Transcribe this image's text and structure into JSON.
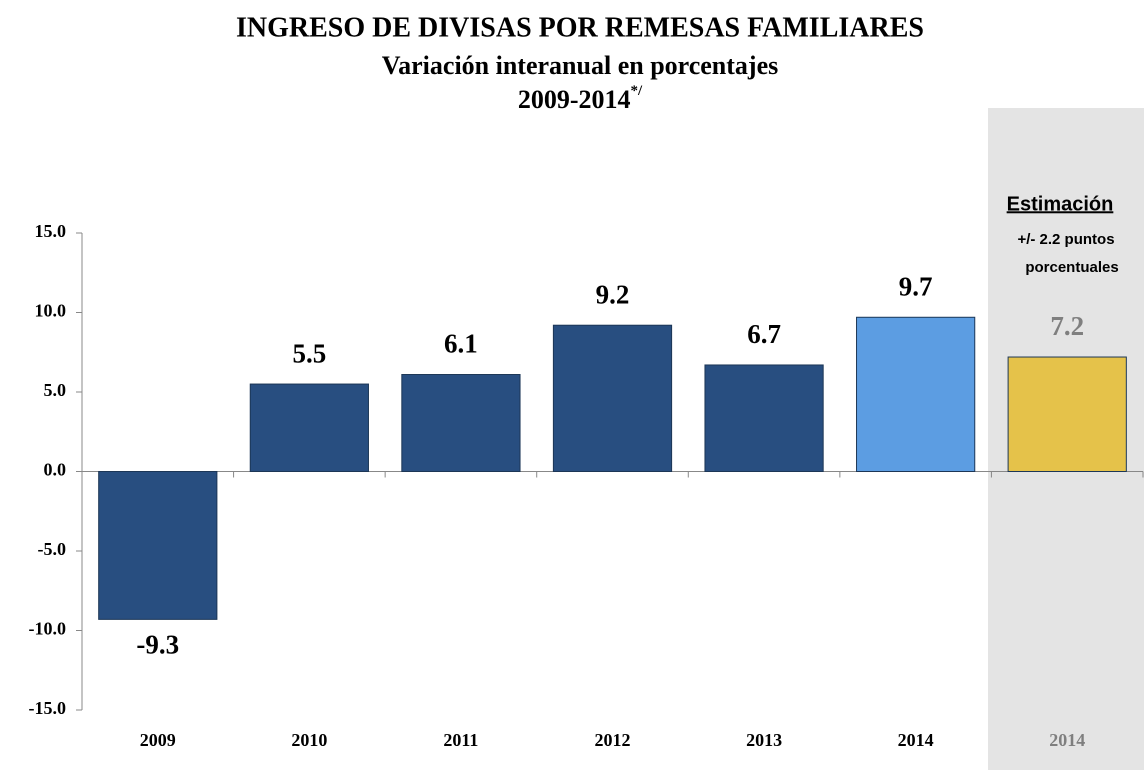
{
  "chart_data": {
    "type": "bar",
    "title": "INGRESO DE DIVISAS POR REMESAS FAMILIARES",
    "subtitle": "Variación interanual en porcentajes",
    "period": "2009-2014",
    "period_note": "*/",
    "annotations": [
      "Estimación",
      "+/- 2.2 puntos",
      "porcentuales"
    ],
    "categories": [
      "2009",
      "2010",
      "2011",
      "2012",
      "2013",
      "2014",
      "2014"
    ],
    "values": [
      -9.3,
      5.5,
      6.1,
      9.2,
      6.7,
      9.7,
      7.2
    ],
    "colors": [
      "#284e80",
      "#284e80",
      "#284e80",
      "#284e80",
      "#284e80",
      "#5c9de2",
      "#e5c24a"
    ],
    "label_colors": [
      "#000000",
      "#000000",
      "#000000",
      "#000000",
      "#000000",
      "#000000",
      "#7f7f7f"
    ],
    "ylim": [
      -15,
      15
    ],
    "yticks": [
      {
        "value": -15,
        "label": "-15.0"
      },
      {
        "value": -10,
        "label": "-10.0"
      },
      {
        "value": -5,
        "label": "-5.0"
      },
      {
        "value": 0,
        "label": "0.0"
      },
      {
        "value": 5,
        "label": "5.0"
      },
      {
        "value": 10,
        "label": "10.0"
      },
      {
        "value": 15,
        "label": "15.0"
      }
    ],
    "grid": false
  }
}
